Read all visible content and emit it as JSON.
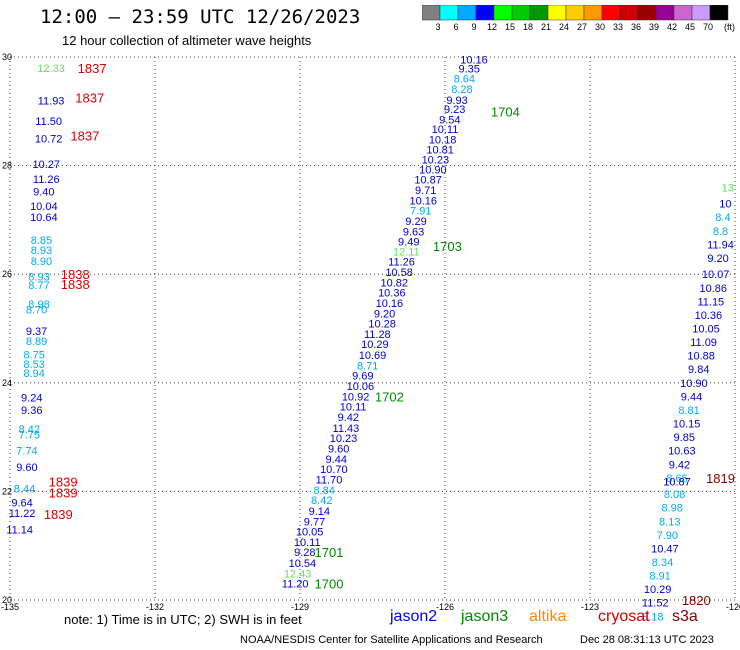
{
  "header": {
    "title": "12:00 — 23:59 UTC 12/26/2023",
    "subtitle": "12 hour collection of altimeter wave heights"
  },
  "colorbar": {
    "unit": "(ft)",
    "colors": [
      "#808080",
      "#00ffff",
      "#00aaff",
      "#0000ff",
      "#00ff00",
      "#00cc00",
      "#009900",
      "#ffff00",
      "#ffcc00",
      "#ff9900",
      "#ff0000",
      "#cc0000",
      "#990000",
      "#990099",
      "#cc66cc",
      "#cc99ff",
      "#000000"
    ],
    "labels": [
      "3",
      "6",
      "9",
      "12",
      "15",
      "18",
      "21",
      "24",
      "27",
      "30",
      "33",
      "36",
      "39",
      "42",
      "45",
      "70"
    ]
  },
  "footer": {
    "note": "note: 1) Time is in UTC; 2) SWH is in feet",
    "satellites": [
      {
        "name": "jason2",
        "color": "#0000ee"
      },
      {
        "name": "jason3",
        "color": "#008800"
      },
      {
        "name": "altika",
        "color": "#ff8800"
      },
      {
        "name": "cryosat",
        "color": "#cc0000"
      },
      {
        "name": "s3a",
        "color": "#880000"
      }
    ],
    "credit": "NOAA/NESDIS Center for Satellite Applications and Research",
    "stamp": "Dec 28 08:31:13 UTC 2023"
  },
  "chart_data": {
    "type": "scatter",
    "x_ticks": [
      "-135",
      "-132",
      "-129",
      "-126",
      "-123",
      "-120"
    ],
    "y_ticks": [
      "20",
      "22",
      "24",
      "26",
      "28",
      "30"
    ],
    "xlim": [
      -135,
      -120
    ],
    "ylim": [
      20,
      30
    ],
    "grid": true,
    "points": [
      {
        "lon": -125.4,
        "lat": 29.95,
        "v": "10.16",
        "c": "#0000cc"
      },
      {
        "lon": -125.5,
        "lat": 29.79,
        "v": "9.35",
        "c": "#0000cc"
      },
      {
        "lon": -125.6,
        "lat": 29.6,
        "v": "8.64",
        "c": "#00aaee"
      },
      {
        "lon": -125.65,
        "lat": 29.41,
        "v": "8.28",
        "c": "#00aaee"
      },
      {
        "lon": -125.75,
        "lat": 29.21,
        "v": "9.93",
        "c": "#0000cc"
      },
      {
        "lon": -125.8,
        "lat": 29.04,
        "v": "9.23",
        "c": "#0000cc"
      },
      {
        "lon": -125.9,
        "lat": 28.85,
        "v": "9.54",
        "c": "#0000cc"
      },
      {
        "lon": -126.0,
        "lat": 28.67,
        "v": "10.11",
        "c": "#0000cc"
      },
      {
        "lon": -126.05,
        "lat": 28.48,
        "v": "10.18",
        "c": "#0000cc"
      },
      {
        "lon": -126.1,
        "lat": 28.3,
        "v": "10.81",
        "c": "#0000cc"
      },
      {
        "lon": -126.2,
        "lat": 28.11,
        "v": "10.23",
        "c": "#0000cc"
      },
      {
        "lon": -126.25,
        "lat": 27.93,
        "v": "10.90",
        "c": "#0000cc"
      },
      {
        "lon": -126.35,
        "lat": 27.74,
        "v": "10.87",
        "c": "#0000cc"
      },
      {
        "lon": -126.4,
        "lat": 27.55,
        "v": "9.71",
        "c": "#0000cc"
      },
      {
        "lon": -126.45,
        "lat": 27.36,
        "v": "10.16",
        "c": "#0000cc"
      },
      {
        "lon": -126.5,
        "lat": 27.17,
        "v": "7.91",
        "c": "#00aaee"
      },
      {
        "lon": -126.6,
        "lat": 26.98,
        "v": "9.29",
        "c": "#0000cc"
      },
      {
        "lon": -126.65,
        "lat": 26.79,
        "v": "9.63",
        "c": "#0000cc"
      },
      {
        "lon": -126.75,
        "lat": 26.6,
        "v": "9.49",
        "c": "#0000cc"
      },
      {
        "lon": -126.8,
        "lat": 26.42,
        "v": "12.11",
        "c": "#66dd66"
      },
      {
        "lon": -126.9,
        "lat": 26.23,
        "v": "11.26",
        "c": "#0000cc"
      },
      {
        "lon": -126.95,
        "lat": 26.04,
        "v": "10.58",
        "c": "#0000cc"
      },
      {
        "lon": -127.05,
        "lat": 25.85,
        "v": "10.82",
        "c": "#0000cc"
      },
      {
        "lon": -127.1,
        "lat": 25.66,
        "v": "10.36",
        "c": "#0000cc"
      },
      {
        "lon": -127.15,
        "lat": 25.47,
        "v": "10.16",
        "c": "#0000cc"
      },
      {
        "lon": -127.25,
        "lat": 25.28,
        "v": "9.20",
        "c": "#0000cc"
      },
      {
        "lon": -127.3,
        "lat": 25.09,
        "v": "10.28",
        "c": "#0000cc"
      },
      {
        "lon": -127.4,
        "lat": 24.9,
        "v": "11.28",
        "c": "#0000cc"
      },
      {
        "lon": -127.45,
        "lat": 24.71,
        "v": "10.29",
        "c": "#0000cc"
      },
      {
        "lon": -127.5,
        "lat": 24.51,
        "v": "10.69",
        "c": "#0000cc"
      },
      {
        "lon": -127.6,
        "lat": 24.32,
        "v": "8.71",
        "c": "#00aaee"
      },
      {
        "lon": -127.7,
        "lat": 24.13,
        "v": "9.69",
        "c": "#0000cc"
      },
      {
        "lon": -127.75,
        "lat": 23.94,
        "v": "10.06",
        "c": "#0000cc"
      },
      {
        "lon": -127.85,
        "lat": 23.75,
        "v": "10.92",
        "c": "#0000cc"
      },
      {
        "lon": -127.9,
        "lat": 23.56,
        "v": "10.11",
        "c": "#0000cc"
      },
      {
        "lon": -128.0,
        "lat": 23.37,
        "v": "9.42",
        "c": "#0000cc"
      },
      {
        "lon": -128.05,
        "lat": 23.17,
        "v": "11.43",
        "c": "#0000cc"
      },
      {
        "lon": -128.1,
        "lat": 22.98,
        "v": "10.23",
        "c": "#0000cc"
      },
      {
        "lon": -128.2,
        "lat": 22.79,
        "v": "9.60",
        "c": "#0000cc"
      },
      {
        "lon": -128.25,
        "lat": 22.6,
        "v": "9.44",
        "c": "#0000cc"
      },
      {
        "lon": -128.3,
        "lat": 22.41,
        "v": "10.70",
        "c": "#0000cc"
      },
      {
        "lon": -128.4,
        "lat": 22.22,
        "v": "11.70",
        "c": "#0000cc"
      },
      {
        "lon": -128.5,
        "lat": 22.03,
        "v": "8.84",
        "c": "#00aaee"
      },
      {
        "lon": -128.55,
        "lat": 21.84,
        "v": "8.42",
        "c": "#00aaee"
      },
      {
        "lon": -128.6,
        "lat": 21.64,
        "v": "9.14",
        "c": "#0000cc"
      },
      {
        "lon": -128.7,
        "lat": 21.45,
        "v": "9.77",
        "c": "#0000cc"
      },
      {
        "lon": -128.8,
        "lat": 21.26,
        "v": "10.05",
        "c": "#0000cc"
      },
      {
        "lon": -128.85,
        "lat": 21.07,
        "v": "10.11",
        "c": "#0000cc"
      },
      {
        "lon": -128.9,
        "lat": 20.88,
        "v": "9.28",
        "c": "#0000cc"
      },
      {
        "lon": -128.95,
        "lat": 20.68,
        "v": "10.54",
        "c": "#0000cc"
      },
      {
        "lon": -129.05,
        "lat": 20.49,
        "v": "12.43",
        "c": "#66dd66"
      },
      {
        "lon": -129.1,
        "lat": 20.3,
        "v": "11.20",
        "c": "#0000cc"
      },
      {
        "lon": -134.15,
        "lat": 29.8,
        "v": "12.33",
        "c": "#66dd66"
      },
      {
        "lon": -134.15,
        "lat": 29.2,
        "v": "11.93",
        "c": "#0000cc"
      },
      {
        "lon": -134.2,
        "lat": 28.82,
        "v": "11.50",
        "c": "#0000cc"
      },
      {
        "lon": -134.2,
        "lat": 28.5,
        "v": "10.72",
        "c": "#0000cc"
      },
      {
        "lon": -134.25,
        "lat": 28.03,
        "v": "10.27",
        "c": "#0000cc"
      },
      {
        "lon": -134.25,
        "lat": 27.75,
        "v": "11.26",
        "c": "#0000cc"
      },
      {
        "lon": -134.3,
        "lat": 27.52,
        "v": "9.40",
        "c": "#0000cc"
      },
      {
        "lon": -134.3,
        "lat": 27.26,
        "v": "10.04",
        "c": "#0000cc"
      },
      {
        "lon": -134.3,
        "lat": 27.05,
        "v": "10.64",
        "c": "#0000cc"
      },
      {
        "lon": -134.35,
        "lat": 26.63,
        "v": "8.85",
        "c": "#00aaee"
      },
      {
        "lon": -134.35,
        "lat": 26.45,
        "v": "8.93",
        "c": "#00aaee"
      },
      {
        "lon": -134.35,
        "lat": 26.24,
        "v": "8.90",
        "c": "#00aaee"
      },
      {
        "lon": -134.4,
        "lat": 25.96,
        "v": "8.93",
        "c": "#00aaee"
      },
      {
        "lon": -134.4,
        "lat": 25.8,
        "v": "8.77",
        "c": "#00aaee"
      },
      {
        "lon": -134.4,
        "lat": 25.45,
        "v": "8.98",
        "c": "#00aaee"
      },
      {
        "lon": -134.45,
        "lat": 25.35,
        "v": "8.70",
        "c": "#00aaee"
      },
      {
        "lon": -134.45,
        "lat": 24.95,
        "v": "9.37",
        "c": "#0000cc"
      },
      {
        "lon": -134.45,
        "lat": 24.77,
        "v": "8.89",
        "c": "#00aaee"
      },
      {
        "lon": -134.5,
        "lat": 24.52,
        "v": "8.75",
        "c": "#00aaee"
      },
      {
        "lon": -134.5,
        "lat": 24.35,
        "v": "8.53",
        "c": "#00aaee"
      },
      {
        "lon": -134.5,
        "lat": 24.18,
        "v": "8.94",
        "c": "#00aaee"
      },
      {
        "lon": -134.55,
        "lat": 23.73,
        "v": "9.24",
        "c": "#0000cc"
      },
      {
        "lon": -134.55,
        "lat": 23.5,
        "v": "9.36",
        "c": "#0000cc"
      },
      {
        "lon": -134.6,
        "lat": 23.15,
        "v": "8.42",
        "c": "#00aaee"
      },
      {
        "lon": -134.6,
        "lat": 23.05,
        "v": "7.75",
        "c": "#00aaee"
      },
      {
        "lon": -134.65,
        "lat": 22.75,
        "v": "7.74",
        "c": "#00aaee"
      },
      {
        "lon": -134.65,
        "lat": 22.45,
        "v": "9.60",
        "c": "#0000cc"
      },
      {
        "lon": -134.7,
        "lat": 22.05,
        "v": "8.44",
        "c": "#00aaee"
      },
      {
        "lon": -134.75,
        "lat": 21.8,
        "v": "9.64",
        "c": "#0000cc"
      },
      {
        "lon": -134.75,
        "lat": 21.6,
        "v": "11.22",
        "c": "#0000cc"
      },
      {
        "lon": -134.8,
        "lat": 21.3,
        "v": "11.14",
        "c": "#0000cc"
      },
      {
        "lon": -120.15,
        "lat": 27.6,
        "v": "13",
        "c": "#66dd66"
      },
      {
        "lon": -120.2,
        "lat": 27.3,
        "v": "10",
        "c": "#0000cc"
      },
      {
        "lon": -120.25,
        "lat": 27.05,
        "v": "8.4",
        "c": "#00aaee"
      },
      {
        "lon": -120.3,
        "lat": 26.8,
        "v": "8.8",
        "c": "#00aaee"
      },
      {
        "lon": -120.3,
        "lat": 26.55,
        "v": "11.94",
        "c": "#0000cc"
      },
      {
        "lon": -120.35,
        "lat": 26.3,
        "v": "9.20",
        "c": "#0000cc"
      },
      {
        "lon": -120.4,
        "lat": 26.0,
        "v": "10.07",
        "c": "#0000cc"
      },
      {
        "lon": -120.45,
        "lat": 25.75,
        "v": "10.86",
        "c": "#0000cc"
      },
      {
        "lon": -120.5,
        "lat": 25.5,
        "v": "11.15",
        "c": "#0000cc"
      },
      {
        "lon": -120.55,
        "lat": 25.25,
        "v": "10.36",
        "c": "#0000cc"
      },
      {
        "lon": -120.6,
        "lat": 25.0,
        "v": "10.05",
        "c": "#0000cc"
      },
      {
        "lon": -120.65,
        "lat": 24.75,
        "v": "11.09",
        "c": "#0000cc"
      },
      {
        "lon": -120.7,
        "lat": 24.5,
        "v": "10.88",
        "c": "#0000cc"
      },
      {
        "lon": -120.75,
        "lat": 24.25,
        "v": "9.84",
        "c": "#0000cc"
      },
      {
        "lon": -120.85,
        "lat": 24.0,
        "v": "10.90",
        "c": "#0000cc"
      },
      {
        "lon": -120.9,
        "lat": 23.75,
        "v": "9.44",
        "c": "#0000cc"
      },
      {
        "lon": -120.95,
        "lat": 23.5,
        "v": "8.81",
        "c": "#00aaee"
      },
      {
        "lon": -121.0,
        "lat": 23.25,
        "v": "10.15",
        "c": "#0000cc"
      },
      {
        "lon": -121.05,
        "lat": 23.0,
        "v": "9.85",
        "c": "#0000cc"
      },
      {
        "lon": -121.1,
        "lat": 22.75,
        "v": "10.63",
        "c": "#0000cc"
      },
      {
        "lon": -121.15,
        "lat": 22.5,
        "v": "9.42",
        "c": "#0000cc"
      },
      {
        "lon": -121.2,
        "lat": 22.25,
        "v": "8.65",
        "c": "#00aaee"
      },
      {
        "lon": -121.2,
        "lat": 22.18,
        "v": "10.87",
        "c": "#0000cc"
      },
      {
        "lon": -121.25,
        "lat": 21.95,
        "v": "8.08",
        "c": "#00aaee"
      },
      {
        "lon": -121.3,
        "lat": 21.7,
        "v": "8.98",
        "c": "#00aaee"
      },
      {
        "lon": -121.35,
        "lat": 21.45,
        "v": "8.13",
        "c": "#00aaee"
      },
      {
        "lon": -121.4,
        "lat": 21.2,
        "v": "7.90",
        "c": "#00aaee"
      },
      {
        "lon": -121.45,
        "lat": 20.95,
        "v": "10.47",
        "c": "#0000cc"
      },
      {
        "lon": -121.5,
        "lat": 20.7,
        "v": "8.34",
        "c": "#00aaee"
      },
      {
        "lon": -121.55,
        "lat": 20.45,
        "v": "8.91",
        "c": "#00aaee"
      },
      {
        "lon": -121.6,
        "lat": 20.2,
        "v": "10.29",
        "c": "#0000cc"
      },
      {
        "lon": -121.65,
        "lat": 19.95,
        "v": "11.52",
        "c": "#0000cc"
      },
      {
        "lon": -121.7,
        "lat": 19.7,
        "v": "8.18",
        "c": "#00aaee"
      }
    ],
    "time_labels": [
      {
        "lon": -125.05,
        "lat": 29.0,
        "t": "1704",
        "c": "#008800"
      },
      {
        "lon": -126.25,
        "lat": 26.52,
        "t": "1703",
        "c": "#008800"
      },
      {
        "lon": -127.45,
        "lat": 23.75,
        "t": "1702",
        "c": "#008800"
      },
      {
        "lon": -128.7,
        "lat": 20.88,
        "t": "1701",
        "c": "#008800"
      },
      {
        "lon": -128.7,
        "lat": 20.3,
        "t": "1700",
        "c": "#008800"
      },
      {
        "lon": -133.6,
        "lat": 29.8,
        "t": "1837",
        "c": "#dd0000"
      },
      {
        "lon": -133.65,
        "lat": 29.25,
        "t": "1837",
        "c": "#dd0000"
      },
      {
        "lon": -133.75,
        "lat": 28.55,
        "t": "1837",
        "c": "#dd0000"
      },
      {
        "lon": -133.95,
        "lat": 26.0,
        "t": "1838",
        "c": "#dd0000"
      },
      {
        "lon": -133.95,
        "lat": 25.82,
        "t": "1838",
        "c": "#dd0000"
      },
      {
        "lon": -134.2,
        "lat": 22.18,
        "t": "1839",
        "c": "#dd0000"
      },
      {
        "lon": -134.2,
        "lat": 21.98,
        "t": "1839",
        "c": "#dd0000"
      },
      {
        "lon": -134.3,
        "lat": 21.58,
        "t": "1839",
        "c": "#dd0000"
      },
      {
        "lon": -120.6,
        "lat": 22.25,
        "t": "1819",
        "c": "#880000"
      },
      {
        "lon": -121.1,
        "lat": 20.0,
        "t": "1820",
        "c": "#880000"
      }
    ]
  }
}
